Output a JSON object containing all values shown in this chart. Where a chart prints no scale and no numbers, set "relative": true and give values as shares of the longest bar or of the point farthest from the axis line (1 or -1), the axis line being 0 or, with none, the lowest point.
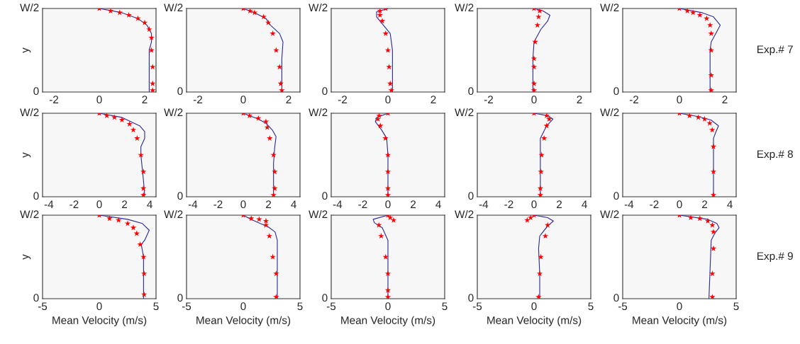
{
  "chart_data": [
    {
      "type": "line",
      "relative": true,
      "ylabel": "y",
      "xlim": [
        -2.5,
        2.5
      ],
      "xticks": [
        -2,
        0,
        2
      ],
      "annotations": [
        "0",
        "W/2"
      ],
      "series": [
        {
          "type": "line",
          "color": "#2a2a9a",
          "marker": "none",
          "x": [
            0,
            1.0,
            1.7,
            2.1,
            2.3,
            2.3,
            2.2,
            2.2,
            2.2
          ],
          "values": [
            1,
            0.95,
            0.88,
            0.8,
            0.7,
            0.6,
            0.5,
            0.3,
            0
          ]
        },
        {
          "type": "scatter",
          "color": "#ff0000",
          "marker": "star",
          "x": [
            0,
            0.5,
            0.9,
            1.3,
            1.7,
            2.0,
            2.2,
            2.3,
            2.3,
            2.35,
            2.35,
            2.35
          ],
          "values": [
            1,
            0.97,
            0.95,
            0.92,
            0.88,
            0.83,
            0.75,
            0.65,
            0.5,
            0.3,
            0.1,
            0.02
          ]
        }
      ]
    },
    {
      "type": "line",
      "relative": true,
      "xlim": [
        -2.5,
        2.5
      ],
      "xticks": [
        -2,
        0,
        2
      ],
      "annotations": [
        "0",
        "W/2"
      ],
      "series": [
        {
          "type": "line",
          "color": "#2a2a9a",
          "marker": "none",
          "x": [
            0,
            0.5,
            1.0,
            1.2,
            1.6,
            1.75,
            1.7,
            1.7,
            1.7
          ],
          "values": [
            1,
            0.95,
            0.88,
            0.8,
            0.7,
            0.6,
            0.4,
            0.2,
            0
          ]
        },
        {
          "type": "scatter",
          "color": "#ff0000",
          "marker": "star",
          "x": [
            0,
            0.3,
            0.5,
            0.9,
            1.1,
            1.3,
            1.45,
            1.6,
            1.65,
            1.7
          ],
          "values": [
            1,
            0.97,
            0.95,
            0.9,
            0.83,
            0.7,
            0.5,
            0.3,
            0.1,
            0.02
          ]
        }
      ]
    },
    {
      "type": "line",
      "relative": true,
      "xlim": [
        -2.5,
        2.5
      ],
      "xticks": [
        -2,
        0,
        2
      ],
      "annotations": [
        "0",
        "W/2"
      ],
      "series": [
        {
          "type": "line",
          "color": "#2a2a9a",
          "marker": "none",
          "x": [
            0,
            -0.5,
            -0.5,
            -0.2,
            0.1,
            0.2,
            0.2,
            0.2
          ],
          "values": [
            1,
            0.96,
            0.9,
            0.8,
            0.7,
            0.5,
            0.3,
            0
          ]
        },
        {
          "type": "scatter",
          "color": "#ff0000",
          "marker": "star",
          "x": [
            -0.1,
            -0.35,
            -0.35,
            -0.25,
            -0.1,
            0,
            0.05,
            0.1,
            0.15
          ],
          "values": [
            1,
            0.97,
            0.92,
            0.85,
            0.7,
            0.5,
            0.3,
            0.1,
            0.02
          ]
        }
      ]
    },
    {
      "type": "line",
      "relative": true,
      "xlim": [
        -2.5,
        2.5
      ],
      "xticks": [
        -2,
        0,
        2
      ],
      "annotations": [
        "0",
        "W/2"
      ],
      "series": [
        {
          "type": "line",
          "color": "#2a2a9a",
          "marker": "none",
          "x": [
            0,
            0.4,
            0.7,
            0.6,
            0.3,
            0.0,
            -0.05,
            -0.05
          ],
          "values": [
            1,
            0.97,
            0.92,
            0.85,
            0.75,
            0.6,
            0.4,
            0
          ]
        },
        {
          "type": "scatter",
          "color": "#ff0000",
          "marker": "star",
          "x": [
            0,
            0.25,
            0.2,
            0.15,
            0.05,
            0,
            0,
            0,
            0
          ],
          "values": [
            1,
            0.97,
            0.9,
            0.8,
            0.6,
            0.4,
            0.3,
            0.1,
            0.02
          ]
        }
      ]
    },
    {
      "type": "line",
      "relative": true,
      "xlim": [
        -2.5,
        2.5
      ],
      "xticks": [
        -2,
        0,
        2
      ],
      "annotations": [
        "0",
        "W/2",
        "Exp.# 7"
      ],
      "series": [
        {
          "type": "line",
          "color": "#2a2a9a",
          "marker": "none",
          "x": [
            0,
            1.0,
            1.5,
            1.8,
            1.6,
            1.4,
            1.35,
            1.35
          ],
          "values": [
            1,
            0.95,
            0.9,
            0.8,
            0.7,
            0.6,
            0.5,
            0
          ]
        },
        {
          "type": "scatter",
          "color": "#ff0000",
          "marker": "star",
          "x": [
            0,
            0.35,
            0.6,
            0.9,
            1.2,
            1.35,
            1.4,
            1.4,
            1.4,
            1.4
          ],
          "values": [
            1,
            0.97,
            0.95,
            0.92,
            0.88,
            0.8,
            0.7,
            0.5,
            0.2,
            0.02
          ]
        }
      ]
    },
    {
      "type": "line",
      "relative": true,
      "ylabel": "y",
      "xlim": [
        -4.5,
        4.5
      ],
      "xticks": [
        -4,
        -2,
        0,
        2,
        4
      ],
      "annotations": [
        "0",
        "W/2"
      ],
      "series": [
        {
          "type": "line",
          "color": "#2a2a9a",
          "marker": "none",
          "x": [
            0,
            1.8,
            3.2,
            3.6,
            3.6,
            3.3,
            3.3,
            3.5,
            3.6
          ],
          "values": [
            1,
            0.95,
            0.85,
            0.78,
            0.7,
            0.6,
            0.5,
            0.2,
            0.02
          ]
        },
        {
          "type": "scatter",
          "color": "#ff0000",
          "marker": "star",
          "x": [
            0,
            0.6,
            1.2,
            1.8,
            2.4,
            2.7,
            3.0,
            3.3,
            3.5,
            3.5,
            3.5
          ],
          "values": [
            1,
            0.97,
            0.95,
            0.92,
            0.87,
            0.8,
            0.7,
            0.5,
            0.3,
            0.1,
            0.02
          ]
        }
      ]
    },
    {
      "type": "line",
      "relative": true,
      "xlim": [
        -4.5,
        4.5
      ],
      "xticks": [
        -4,
        -2,
        0,
        2,
        4
      ],
      "annotations": [
        "0",
        "W/2"
      ],
      "series": [
        {
          "type": "line",
          "color": "#2a2a9a",
          "marker": "none",
          "x": [
            0,
            1.2,
            1.8,
            2.3,
            2.6,
            2.5,
            2.4,
            2.4
          ],
          "values": [
            1,
            0.93,
            0.88,
            0.8,
            0.72,
            0.6,
            0.4,
            0.02
          ]
        },
        {
          "type": "scatter",
          "color": "#ff0000",
          "marker": "star",
          "x": [
            0,
            0.5,
            1.2,
            1.8,
            1.9,
            2.1,
            2.4,
            2.5,
            2.5,
            2.4
          ],
          "values": [
            1,
            0.97,
            0.94,
            0.9,
            0.83,
            0.7,
            0.5,
            0.3,
            0.1,
            0.02
          ]
        }
      ]
    },
    {
      "type": "line",
      "relative": true,
      "xlim": [
        -4.5,
        4.5
      ],
      "xticks": [
        -4,
        -2,
        0,
        2,
        4
      ],
      "annotations": [
        "0",
        "W/2"
      ],
      "series": [
        {
          "type": "line",
          "color": "#2a2a9a",
          "marker": "none",
          "x": [
            0,
            -0.9,
            -1.0,
            -0.5,
            -0.1,
            0,
            0
          ],
          "values": [
            1,
            0.95,
            0.9,
            0.8,
            0.7,
            0.5,
            0
          ]
        },
        {
          "type": "scatter",
          "color": "#ff0000",
          "marker": "star",
          "x": [
            0,
            -0.7,
            -0.8,
            -0.6,
            -0.2,
            0,
            0,
            0,
            0
          ],
          "values": [
            1,
            0.97,
            0.93,
            0.85,
            0.7,
            0.5,
            0.3,
            0.1,
            0.02
          ]
        }
      ]
    },
    {
      "type": "line",
      "relative": true,
      "xlim": [
        -4.5,
        4.5
      ],
      "xticks": [
        -4,
        -2,
        0,
        2,
        4
      ],
      "annotations": [
        "0",
        "W/2"
      ],
      "series": [
        {
          "type": "line",
          "color": "#2a2a9a",
          "marker": "none",
          "x": [
            0,
            1.1,
            1.5,
            1.0,
            0.5,
            0.5,
            0.5,
            0.5
          ],
          "values": [
            1,
            0.97,
            0.93,
            0.85,
            0.7,
            0.5,
            0.3,
            0
          ]
        },
        {
          "type": "scatter",
          "color": "#ff0000",
          "marker": "star",
          "x": [
            0,
            1.0,
            1.2,
            1.0,
            0.8,
            0.6,
            0.55,
            0.5,
            0.5
          ],
          "values": [
            1,
            0.97,
            0.93,
            0.85,
            0.7,
            0.5,
            0.3,
            0.1,
            0.02
          ]
        }
      ]
    },
    {
      "type": "line",
      "relative": true,
      "xlim": [
        -4.5,
        4.5
      ],
      "xticks": [
        -4,
        -2,
        0,
        2,
        4
      ],
      "annotations": [
        "0",
        "W/2",
        "Exp.# 8"
      ],
      "series": [
        {
          "type": "line",
          "color": "#2a2a9a",
          "marker": "none",
          "x": [
            0,
            1.5,
            2.5,
            3.1,
            2.9,
            2.7,
            2.7
          ],
          "values": [
            1,
            0.96,
            0.92,
            0.85,
            0.78,
            0.7,
            0
          ]
        },
        {
          "type": "scatter",
          "color": "#ff0000",
          "marker": "star",
          "x": [
            0,
            0.8,
            1.5,
            2.0,
            2.4,
            2.6,
            2.7,
            2.7,
            2.7
          ],
          "values": [
            1,
            0.97,
            0.95,
            0.93,
            0.88,
            0.8,
            0.6,
            0.3,
            0.02
          ]
        }
      ]
    },
    {
      "type": "line",
      "relative": true,
      "ylabel": "y",
      "xlabel": "Mean Velocity (m/s)",
      "xlim": [
        -5,
        5
      ],
      "xticks": [
        -5,
        0,
        5
      ],
      "annotations": [
        "0",
        "W/2"
      ],
      "series": [
        {
          "type": "line",
          "color": "#2a2a9a",
          "marker": "none",
          "x": [
            0,
            2.5,
            3.8,
            4.4,
            4.0,
            3.7,
            3.9,
            3.9
          ],
          "values": [
            1,
            0.95,
            0.9,
            0.82,
            0.7,
            0.65,
            0.5,
            0
          ]
        },
        {
          "type": "scatter",
          "color": "#ff0000",
          "marker": "star",
          "x": [
            0,
            0.9,
            1.7,
            2.5,
            3.0,
            3.3,
            3.6,
            3.9,
            3.95,
            3.95
          ],
          "values": [
            1,
            0.96,
            0.94,
            0.9,
            0.85,
            0.78,
            0.65,
            0.5,
            0.3,
            0.05
          ]
        }
      ]
    },
    {
      "type": "line",
      "relative": true,
      "xlabel": "Mean Velocity (m/s)",
      "xlim": [
        -5,
        5
      ],
      "xticks": [
        -5,
        0,
        5
      ],
      "annotations": [
        "0",
        "W/2"
      ],
      "series": [
        {
          "type": "line",
          "color": "#2a2a9a",
          "marker": "none",
          "x": [
            0,
            0.7,
            1.5,
            2.2,
            2.8,
            3.0,
            3.0,
            3.0
          ],
          "values": [
            1,
            0.95,
            0.9,
            0.86,
            0.8,
            0.7,
            0.6,
            0
          ]
        },
        {
          "type": "scatter",
          "color": "#ff0000",
          "marker": "star",
          "x": [
            0,
            0.7,
            1.4,
            2.0,
            2.0,
            2.3,
            2.6,
            2.9,
            2.9
          ],
          "values": [
            1,
            0.96,
            0.95,
            0.93,
            0.88,
            0.75,
            0.5,
            0.3,
            0.02
          ]
        }
      ]
    },
    {
      "type": "line",
      "relative": true,
      "xlabel": "Mean Velocity (m/s)",
      "xlim": [
        -5,
        5
      ],
      "xticks": [
        -5,
        0,
        5
      ],
      "annotations": [
        "0",
        "W/2"
      ],
      "series": [
        {
          "type": "line",
          "color": "#2a2a9a",
          "marker": "none",
          "x": [
            0,
            -1.3,
            -1.2,
            -0.5,
            0,
            0,
            0
          ],
          "values": [
            1,
            0.95,
            0.91,
            0.85,
            0.7,
            0.4,
            0
          ]
        },
        {
          "type": "scatter",
          "color": "#ff0000",
          "marker": "star",
          "x": [
            0,
            0.2,
            0.5,
            -0.8,
            -0.6,
            -0.2,
            0,
            0,
            0
          ],
          "values": [
            1,
            0.97,
            0.94,
            0.88,
            0.75,
            0.5,
            0.3,
            0.1,
            0.02
          ]
        }
      ]
    },
    {
      "type": "line",
      "relative": true,
      "xlabel": "Mean Velocity (m/s)",
      "xlim": [
        -5,
        5
      ],
      "xticks": [
        -5,
        0,
        5
      ],
      "annotations": [
        "0",
        "W/2"
      ],
      "series": [
        {
          "type": "line",
          "color": "#2a2a9a",
          "marker": "none",
          "x": [
            0,
            1.2,
            1.7,
            1.2,
            0.5,
            0.4,
            0.5,
            0.5
          ],
          "values": [
            1,
            0.97,
            0.93,
            0.87,
            0.75,
            0.6,
            0.3,
            0
          ]
        },
        {
          "type": "scatter",
          "color": "#ff0000",
          "marker": "star",
          "x": [
            0,
            -0.3,
            -0.6,
            1.2,
            1.0,
            0.6,
            0.5,
            0.4
          ],
          "values": [
            1,
            0.97,
            0.94,
            0.88,
            0.75,
            0.5,
            0.3,
            0.02
          ]
        }
      ]
    },
    {
      "type": "line",
      "relative": true,
      "xlabel": "Mean Velocity (m/s)",
      "xlim": [
        -5,
        5
      ],
      "xticks": [
        -5,
        0,
        5
      ],
      "annotations": [
        "0",
        "W/2",
        "Exp.# 9"
      ],
      "series": [
        {
          "type": "line",
          "color": "#2a2a9a",
          "marker": "none",
          "x": [
            0,
            2.5,
            3.3,
            3.5,
            3.1,
            2.8,
            2.6
          ],
          "values": [
            1,
            0.95,
            0.9,
            0.85,
            0.78,
            0.7,
            0
          ]
        },
        {
          "type": "scatter",
          "color": "#ff0000",
          "marker": "star",
          "x": [
            0,
            1.0,
            1.8,
            2.5,
            2.9,
            3.0,
            3.0,
            2.9,
            2.9
          ],
          "values": [
            1,
            0.97,
            0.96,
            0.93,
            0.88,
            0.8,
            0.6,
            0.3,
            0.02
          ]
        }
      ]
    }
  ]
}
